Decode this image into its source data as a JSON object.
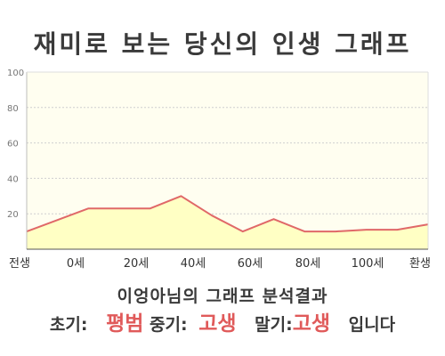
{
  "title": "재미로 보는 당신의 인생 그래프",
  "chart_data": {
    "type": "area",
    "categories": [
      "전생",
      "0세",
      "20세",
      "40세",
      "60세",
      "80세",
      "100세",
      "환생"
    ],
    "x": [
      -20,
      0,
      10,
      20,
      30,
      40,
      50,
      60,
      70,
      80,
      90,
      100,
      110
    ],
    "values": [
      10,
      23,
      23,
      23,
      30,
      19,
      10,
      17,
      10,
      10,
      11,
      11,
      14
    ],
    "ylim": [
      0,
      100
    ],
    "yticks": [
      20,
      40,
      60,
      80,
      100
    ],
    "grid": true,
    "colors": {
      "fill": "#ffffc4",
      "line": "#e06868",
      "plot_bg": "#fffef0"
    }
  },
  "analysis": {
    "name": "이엉아님의",
    "heading": "그래프 분석결과"
  },
  "summary": {
    "early_label": "초기:",
    "early_value": "평범",
    "mid_label": "중기:",
    "mid_value": "고생",
    "late_label": "말기:",
    "late_value": "고생",
    "ending": "입니다"
  }
}
